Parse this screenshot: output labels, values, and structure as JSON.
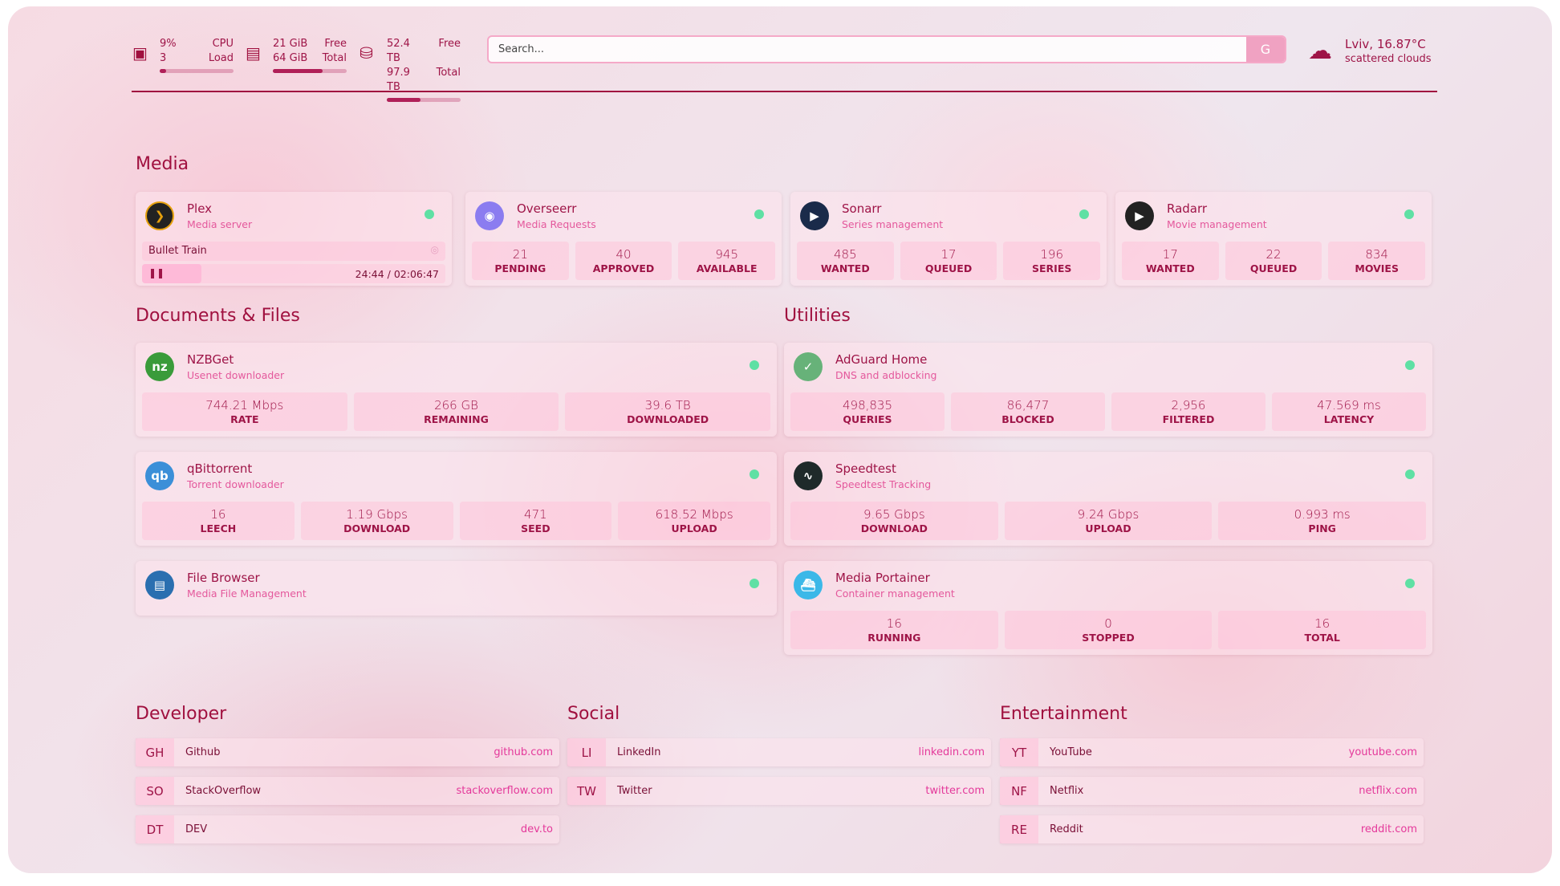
{
  "header": {
    "cpu": {
      "icon": "cpu-icon",
      "value": "9%",
      "value_label": "CPU",
      "sub": "3",
      "sub_label": "Load",
      "percent": 9
    },
    "memory": {
      "icon": "memory-icon",
      "value": "21 GiB",
      "value_label": "Free",
      "sub": "64 GiB",
      "sub_label": "Total",
      "percent": 67
    },
    "disk": {
      "icon": "disk-icon",
      "value": "52.4 TB",
      "value_label": "Free",
      "sub": "97.9 TB",
      "sub_label": "Total",
      "percent": 46
    },
    "search": {
      "placeholder": "Search...",
      "button": "G"
    },
    "weather": {
      "icon": "cloud-sun-icon",
      "location": "Lviv, 16.87°C",
      "condition": "scattered clouds"
    }
  },
  "colors": {
    "accent": "#a0103f",
    "status_online": "#5fe0a4",
    "subtitle": "#e4589c"
  },
  "sections": {
    "media": "Media",
    "documents": "Documents & Files",
    "utilities": "Utilities",
    "developer": "Developer",
    "social": "Social",
    "entertainment": "Entertainment"
  },
  "plex": {
    "name": "Plex",
    "sub": "Media server",
    "now_playing": "Bullet Train",
    "time": "24:44 / 02:06:47",
    "progress": 0.195
  },
  "cards": {
    "overseerr": {
      "name": "Overseerr",
      "sub": "Media Requests",
      "stats": [
        {
          "v": "21",
          "l": "PENDING"
        },
        {
          "v": "40",
          "l": "APPROVED"
        },
        {
          "v": "945",
          "l": "AVAILABLE"
        }
      ]
    },
    "sonarr": {
      "name": "Sonarr",
      "sub": "Series management",
      "stats": [
        {
          "v": "485",
          "l": "WANTED"
        },
        {
          "v": "17",
          "l": "QUEUED"
        },
        {
          "v": "196",
          "l": "SERIES"
        }
      ]
    },
    "radarr": {
      "name": "Radarr",
      "sub": "Movie management",
      "stats": [
        {
          "v": "17",
          "l": "WANTED"
        },
        {
          "v": "22",
          "l": "QUEUED"
        },
        {
          "v": "834",
          "l": "MOVIES"
        }
      ]
    },
    "nzbget": {
      "name": "NZBGet",
      "sub": "Usenet downloader",
      "stats": [
        {
          "v": "744.21 Mbps",
          "l": "RATE"
        },
        {
          "v": "266 GB",
          "l": "REMAINING"
        },
        {
          "v": "39.6 TB",
          "l": "DOWNLOADED"
        }
      ]
    },
    "qbittorrent": {
      "name": "qBittorrent",
      "sub": "Torrent downloader",
      "stats": [
        {
          "v": "16",
          "l": "LEECH"
        },
        {
          "v": "1.19 Gbps",
          "l": "DOWNLOAD"
        },
        {
          "v": "471",
          "l": "SEED"
        },
        {
          "v": "618.52 Mbps",
          "l": "UPLOAD"
        }
      ]
    },
    "filebrowser": {
      "name": "File Browser",
      "sub": "Media File Management",
      "stats": []
    },
    "adguard": {
      "name": "AdGuard Home",
      "sub": "DNS and adblocking",
      "stats": [
        {
          "v": "498,835",
          "l": "QUERIES"
        },
        {
          "v": "86,477",
          "l": "BLOCKED"
        },
        {
          "v": "2,956",
          "l": "FILTERED"
        },
        {
          "v": "47.569 ms",
          "l": "LATENCY"
        }
      ]
    },
    "speedtest": {
      "name": "Speedtest",
      "sub": "Speedtest Tracking",
      "stats": [
        {
          "v": "9.65 Gbps",
          "l": "DOWNLOAD"
        },
        {
          "v": "9.24 Gbps",
          "l": "UPLOAD"
        },
        {
          "v": "0.993 ms",
          "l": "PING"
        }
      ]
    },
    "portainer": {
      "name": "Media Portainer",
      "sub": "Container management",
      "stats": [
        {
          "v": "16",
          "l": "RUNNING"
        },
        {
          "v": "0",
          "l": "STOPPED"
        },
        {
          "v": "16",
          "l": "TOTAL"
        }
      ]
    }
  },
  "bookmarks": {
    "developer": [
      {
        "ab": "GH",
        "name": "Github",
        "url": "github.com"
      },
      {
        "ab": "SO",
        "name": "StackOverflow",
        "url": "stackoverflow.com"
      },
      {
        "ab": "DT",
        "name": "DEV",
        "url": "dev.to"
      }
    ],
    "social": [
      {
        "ab": "LI",
        "name": "LinkedIn",
        "url": "linkedin.com"
      },
      {
        "ab": "TW",
        "name": "Twitter",
        "url": "twitter.com"
      }
    ],
    "entertainment": [
      {
        "ab": "YT",
        "name": "YouTube",
        "url": "youtube.com"
      },
      {
        "ab": "NF",
        "name": "Netflix",
        "url": "netflix.com"
      },
      {
        "ab": "RE",
        "name": "Reddit",
        "url": "reddit.com"
      }
    ]
  }
}
